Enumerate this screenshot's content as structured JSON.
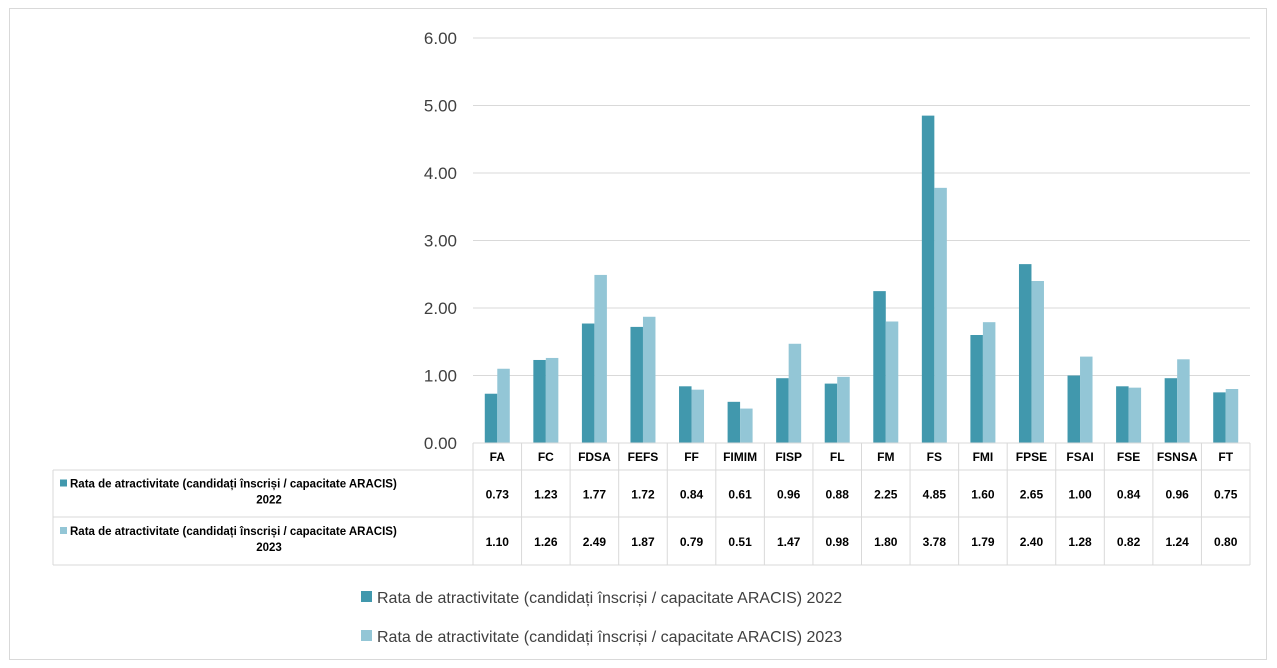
{
  "chart_data": {
    "type": "bar",
    "categories": [
      "FA",
      "FC",
      "FDSA",
      "FEFS",
      "FF",
      "FIMIM",
      "FISP",
      "FL",
      "FM",
      "FS",
      "FMI",
      "FPSE",
      "FSAI",
      "FSE",
      "FSNSA",
      "FT"
    ],
    "series": [
      {
        "name": "Rata de atractivitate (candidați înscriși / capacitate ARACIS) 2022",
        "table_label_line1": "Rata de atractivitate (candidați înscriși / capacitate ARACIS)",
        "table_label_line2": "2022",
        "color": "#4198ad",
        "values": [
          0.73,
          1.23,
          1.77,
          1.72,
          0.84,
          0.61,
          0.96,
          0.88,
          2.25,
          4.85,
          1.6,
          2.65,
          1.0,
          0.84,
          0.96,
          0.75
        ],
        "labels": [
          "0.73",
          "1.23",
          "1.77",
          "1.72",
          "0.84",
          "0.61",
          "0.96",
          "0.88",
          "2.25",
          "4.85",
          "1.60",
          "2.65",
          "1.00",
          "0.84",
          "0.96",
          "0.75"
        ]
      },
      {
        "name": "Rata de atractivitate (candidați înscriși / capacitate ARACIS) 2023",
        "table_label_line1": "Rata de atractivitate (candidați înscriși / capacitate ARACIS)",
        "table_label_line2": "2023",
        "color": "#93c6d6",
        "values": [
          1.1,
          1.26,
          2.49,
          1.87,
          0.79,
          0.51,
          1.47,
          0.98,
          1.8,
          3.78,
          1.79,
          2.4,
          1.28,
          0.82,
          1.24,
          0.8
        ],
        "labels": [
          "1.10",
          "1.26",
          "2.49",
          "1.87",
          "0.79",
          "0.51",
          "1.47",
          "0.98",
          "1.80",
          "3.78",
          "1.79",
          "2.40",
          "1.28",
          "0.82",
          "1.24",
          "0.80"
        ]
      }
    ],
    "ylim": [
      0,
      6
    ],
    "yticks": [
      "0.00",
      "1.00",
      "2.00",
      "3.00",
      "4.00",
      "5.00",
      "6.00"
    ],
    "grid": true,
    "legend_position": "bottom",
    "data_table": true
  }
}
